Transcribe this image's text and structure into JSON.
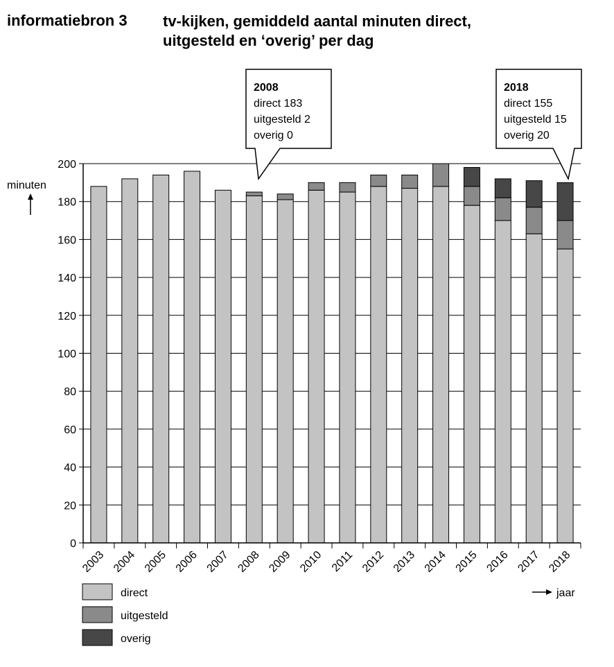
{
  "header": {
    "source_label": "informatiebron 3",
    "title_lines": [
      "tv-kijken, gemiddeld aantal minuten direct,",
      "uitgesteld en ‘overig’ per dag"
    ]
  },
  "colors": {
    "direct": "#c3c3c3",
    "uitgesteld": "#8a8a8a",
    "overig": "#474747"
  },
  "chart_data": {
    "type": "bar",
    "stacked": true,
    "title": "tv-kijken, gemiddeld aantal minuten direct, uitgesteld en ‘overig’ per dag",
    "ylabel": "minuten",
    "xlabel": "jaar",
    "ylim": [
      0,
      200
    ],
    "yticks": [
      0,
      20,
      40,
      60,
      80,
      100,
      120,
      140,
      160,
      180,
      200
    ],
    "grid": true,
    "legend_position": "bottom-left",
    "categories": [
      "2003",
      "2004",
      "2005",
      "2006",
      "2007",
      "2008",
      "2009",
      "2010",
      "2011",
      "2012",
      "2013",
      "2014",
      "2015",
      "2016",
      "2017",
      "2018"
    ],
    "series": [
      {
        "name": "direct",
        "values": [
          188,
          192,
          194,
          196,
          186,
          183,
          181,
          186,
          185,
          188,
          187,
          188,
          178,
          170,
          163,
          155
        ]
      },
      {
        "name": "uitgesteld",
        "values": [
          0,
          0,
          0,
          0,
          0,
          2,
          3,
          4,
          5,
          6,
          7,
          12,
          10,
          12,
          14,
          15
        ]
      },
      {
        "name": "overig",
        "values": [
          0,
          0,
          0,
          0,
          0,
          0,
          0,
          0,
          0,
          0,
          0,
          0,
          10,
          10,
          14,
          20
        ]
      }
    ],
    "annotations": [
      {
        "year": "2008",
        "lines": [
          "2008",
          "direct 183",
          "uitgesteld 2",
          "overig 0"
        ]
      },
      {
        "year": "2018",
        "lines": [
          "2018",
          "direct 155",
          "uitgesteld 15",
          "overig 20"
        ]
      }
    ]
  }
}
